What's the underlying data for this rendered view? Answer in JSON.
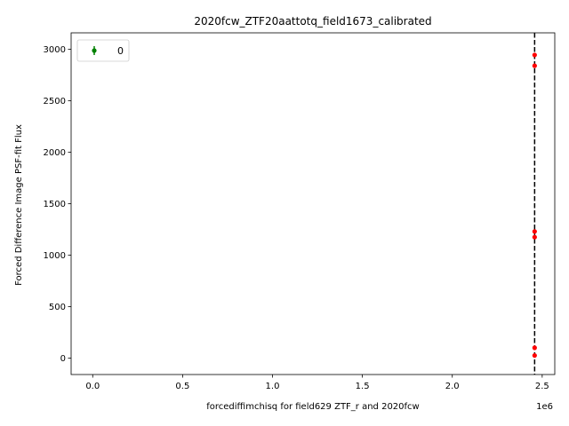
{
  "chart_data": {
    "type": "scatter",
    "title": "2020fcw_ZTF20aattotq_field1673_calibrated",
    "xlabel": "forcediffimchisq for field629 ZTF_r and 2020fcw",
    "ylabel": "Forced Difference Image PSF-fit Flux",
    "x_offset_text": "1e6",
    "xlim": [
      -120000,
      2570000
    ],
    "ylim": [
      -160,
      3160
    ],
    "x_ticks": [
      0,
      500000,
      1000000,
      1500000,
      2000000,
      2500000
    ],
    "x_tick_labels": [
      "0.0",
      "0.5",
      "1.0",
      "1.5",
      "2.0",
      "2.5"
    ],
    "y_ticks": [
      0,
      500,
      1000,
      1500,
      2000,
      2500,
      3000
    ],
    "y_tick_labels": [
      "0",
      "500",
      "1000",
      "1500",
      "2000",
      "2500",
      "3000"
    ],
    "vline_x": 2458000,
    "grid": false,
    "legend_position": "upper left",
    "legend": [
      {
        "label": "0",
        "color": "#008000"
      }
    ],
    "points": [
      {
        "x": 2458000,
        "y": 2945
      },
      {
        "x": 2458000,
        "y": 2840
      },
      {
        "x": 2458000,
        "y": 1230
      },
      {
        "x": 2458000,
        "y": 1175
      },
      {
        "x": 2458000,
        "y": 100
      },
      {
        "x": 2458000,
        "y": 25
      }
    ],
    "point_color": "#ff0000",
    "vline_color": "#000000"
  }
}
